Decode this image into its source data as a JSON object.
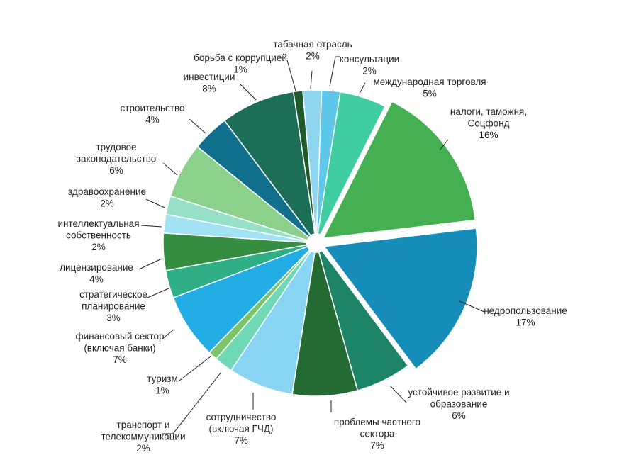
{
  "chart_data": {
    "type": "pie",
    "title": "",
    "slices": [
      {
        "name": "консультации",
        "value": 2,
        "label": "2%",
        "color": "#5ec8ea"
      },
      {
        "name": "международная торговля",
        "value": 5,
        "label": "5%",
        "color": "#41cda2"
      },
      {
        "name": "налоги, таможня, Соцфонд",
        "value": 16,
        "label": "16%",
        "color": "#45b052"
      },
      {
        "name": "недропользование",
        "value": 17,
        "label": "17%",
        "color": "#158db8"
      },
      {
        "name": "устойчивое развитие и образование",
        "value": 6,
        "label": "6%",
        "color": "#1e8468"
      },
      {
        "name": "проблемы частного сектора",
        "value": 7,
        "label": "7%",
        "color": "#236b33"
      },
      {
        "name": "сотрудничество (включая ГЧД)",
        "value": 7,
        "label": "7%",
        "color": "#87d5f2"
      },
      {
        "name": "транспорт и телекоммуникации",
        "value": 2,
        "label": "2%",
        "color": "#6fd9b5"
      },
      {
        "name": "туризм",
        "value": 1,
        "label": "1%",
        "color": "#7cc46a"
      },
      {
        "name": "финансовый сектор (включая банки)",
        "value": 7,
        "label": "7%",
        "color": "#22aee4"
      },
      {
        "name": "стратегическое планирование",
        "value": 3,
        "label": "3%",
        "color": "#2faf85"
      },
      {
        "name": "лицензирование",
        "value": 4,
        "label": "4%",
        "color": "#358d41"
      },
      {
        "name": "интеллектуальная собственность",
        "value": 2,
        "label": "2%",
        "color": "#a3e1f5"
      },
      {
        "name": "здравоохранение",
        "value": 2,
        "label": "2%",
        "color": "#96e0c7"
      },
      {
        "name": "трудовое законодательство",
        "value": 6,
        "label": "6%",
        "color": "#8bd08b"
      },
      {
        "name": "строительство",
        "value": 4,
        "label": "4%",
        "color": "#106f8d"
      },
      {
        "name": "инвестиции",
        "value": 8,
        "label": "8%",
        "color": "#1d6e57"
      },
      {
        "name": "борьба с коррупцией",
        "value": 1,
        "label": "1%",
        "color": "#1f5a2b"
      },
      {
        "name": "табачная отрасль",
        "value": 2,
        "label": "2%",
        "color": "#8fd6f0"
      }
    ],
    "labels": {
      "konsult": [
        "консультации",
        "2%"
      ],
      "mezhd": [
        "международная торговля",
        "5%"
      ],
      "nalogi": [
        "налоги, таможня,",
        "Соцфонд",
        "16%"
      ],
      "nedro": [
        "недропользование",
        "17%"
      ],
      "ustoych": [
        "устойчивое развитие и",
        "образование",
        "6%"
      ],
      "problemy": [
        "проблемы частного",
        "сектора",
        "7%"
      ],
      "sotr": [
        "сотрудничество",
        "(включая ГЧД)",
        "7%"
      ],
      "transport": [
        "транспорт и",
        "телекоммуникации",
        "2%"
      ],
      "turizm": [
        "туризм",
        "1%"
      ],
      "finans": [
        "финансовый сектор",
        "(включая банки)",
        "7%"
      ],
      "strat": [
        "стратегическое",
        "планирование",
        "3%"
      ],
      "licenz": [
        "лицензирование",
        "4%"
      ],
      "intel": [
        "интеллектуальная",
        "собственность",
        "2%"
      ],
      "zdrav": [
        "здравоохранение",
        "2%"
      ],
      "trud": [
        "трудовое",
        "законодательство",
        "6%"
      ],
      "stroit": [
        "строительство",
        "4%"
      ],
      "invest": [
        "инвестиции",
        "8%"
      ],
      "korrup": [
        "борьба с коррупцией",
        "1%"
      ],
      "tabak": [
        "табачная отрасль",
        "2%"
      ]
    }
  }
}
